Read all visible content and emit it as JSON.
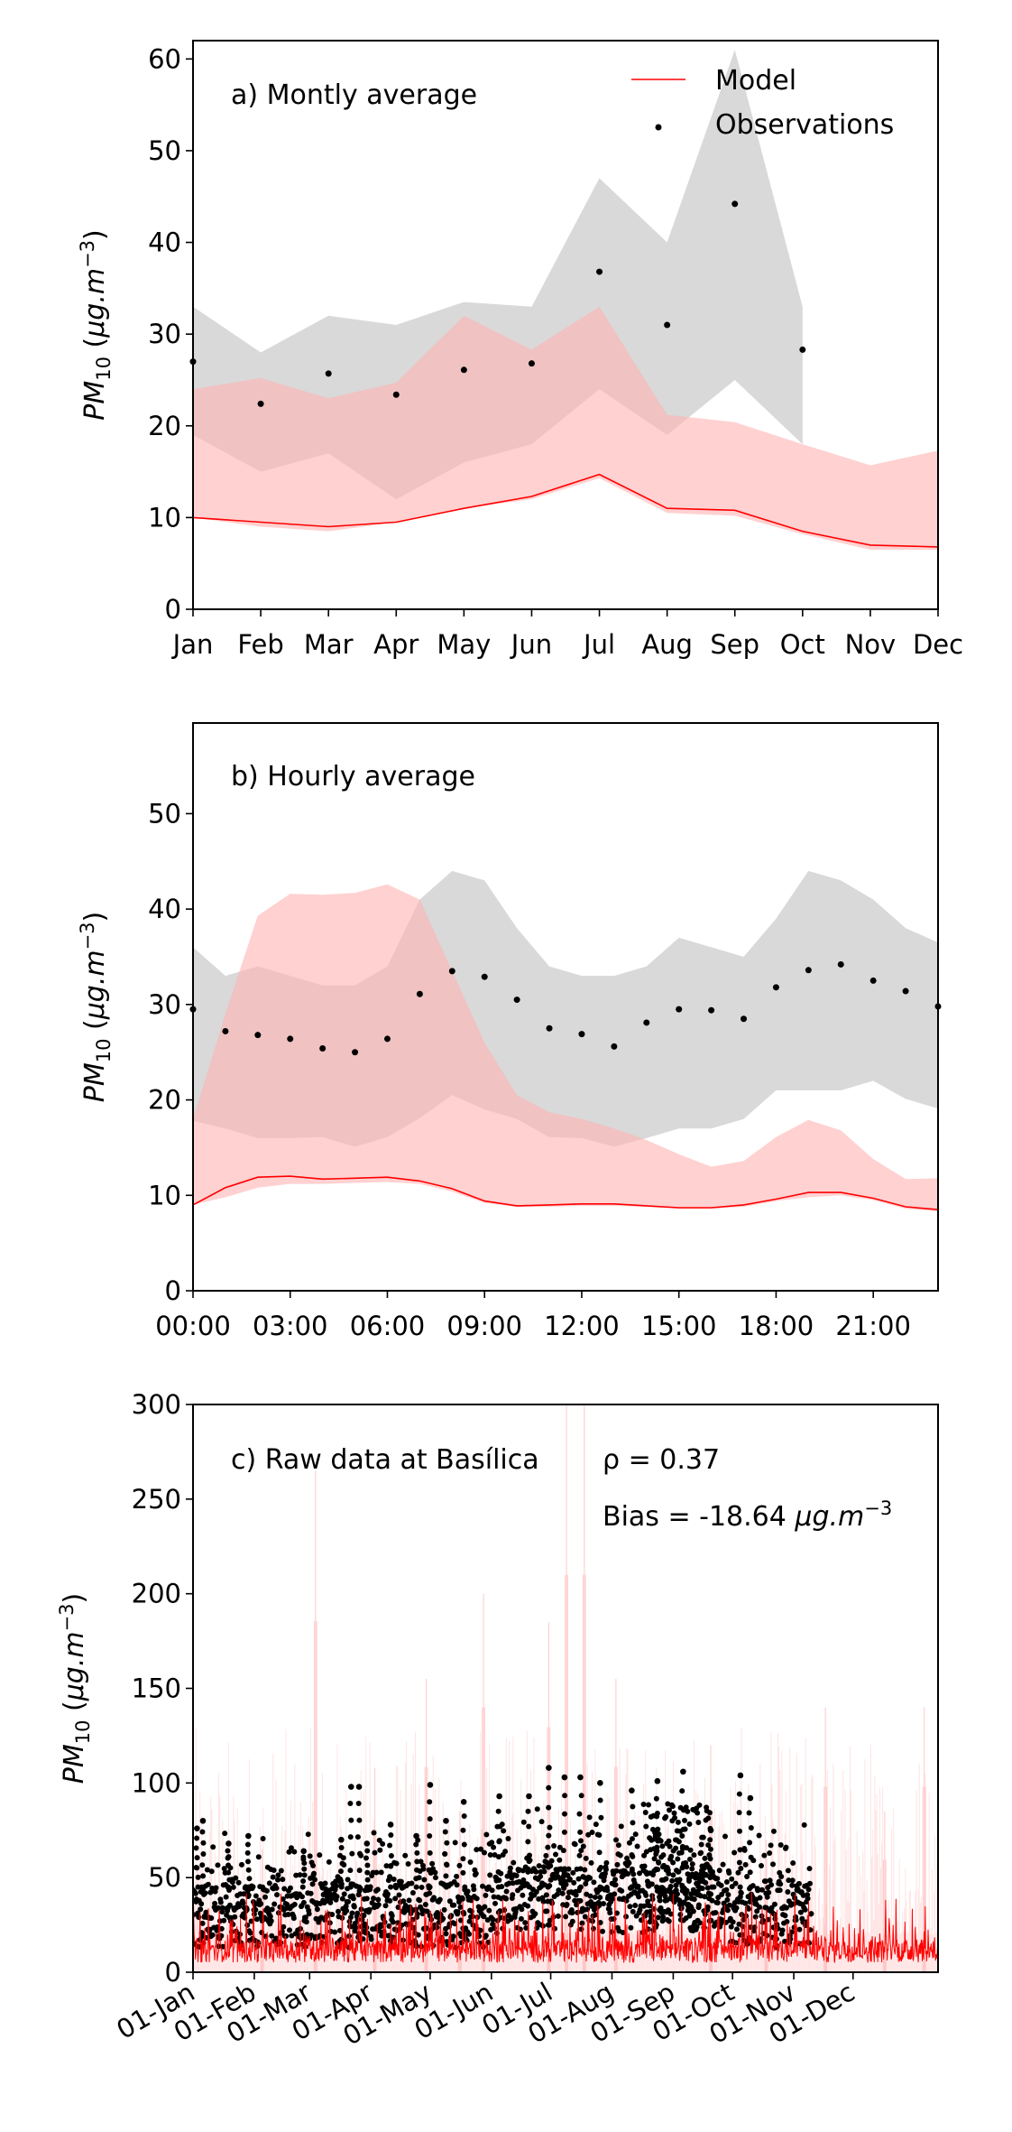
{
  "chart_data": [
    {
      "type": "line",
      "panel_label": "a) Montly average",
      "ylabel": "PM10 (μg.m−3)",
      "ylim": [
        0,
        62
      ],
      "yticks": [
        0,
        10,
        20,
        30,
        40,
        50,
        60
      ],
      "categories": [
        "Jan",
        "Feb",
        "Mar",
        "Apr",
        "May",
        "Jun",
        "Jul",
        "Aug",
        "Sep",
        "Oct",
        "Nov",
        "Dec"
      ],
      "legend": {
        "placement": "top-right",
        "model_label": "Model",
        "obs_label": "Observations"
      },
      "model_color": "#ff0000",
      "model_band_color": "#ffb3b3",
      "obs_band_color": "#d9d9d9",
      "series": [
        {
          "name": "Model",
          "values": [
            10.0,
            9.5,
            9.0,
            9.5,
            11.0,
            12.3,
            14.7,
            11.0,
            10.8,
            8.5,
            7.0,
            6.8
          ]
        },
        {
          "name": "Observations",
          "values": [
            27.0,
            22.4,
            25.7,
            23.4,
            26.1,
            26.8,
            36.8,
            31.0,
            44.2,
            28.3,
            null,
            null
          ]
        }
      ],
      "model_band_lower": [
        10.0,
        9.0,
        8.5,
        9.5,
        11.0,
        12.0,
        14.3,
        10.5,
        10.2,
        8.2,
        6.5,
        6.5
      ],
      "model_band_upper": [
        24.0,
        25.2,
        23.0,
        24.7,
        32.0,
        28.3,
        33.0,
        21.2,
        20.4,
        18.0,
        15.7,
        17.3
      ],
      "obs_band_lower": [
        19.0,
        15.0,
        17.0,
        12.0,
        16.0,
        18.0,
        24.0,
        19.0,
        25.0,
        18.0,
        null,
        null
      ],
      "obs_band_upper": [
        33.0,
        28.0,
        32.0,
        31.0,
        33.5,
        33.0,
        47.0,
        40.0,
        61.0,
        33.0,
        null,
        null
      ]
    },
    {
      "type": "line",
      "panel_label": "b) Hourly average",
      "ylabel": "PM10 (μg.m−3)",
      "ylim": [
        0,
        59.5
      ],
      "yticks": [
        0,
        10,
        20,
        30,
        40,
        50
      ],
      "x": [
        0,
        1,
        2,
        3,
        4,
        5,
        6,
        7,
        8,
        9,
        10,
        11,
        12,
        13,
        14,
        15,
        16,
        17,
        18,
        19,
        20,
        21,
        22,
        23
      ],
      "xtick_labels": [
        "00:00",
        "03:00",
        "06:00",
        "09:00",
        "12:00",
        "15:00",
        "18:00",
        "21:00"
      ],
      "model_color": "#ff0000",
      "model_band_color": "#ffb3b3",
      "obs_band_color": "#d9d9d9",
      "series": [
        {
          "name": "Model",
          "values": [
            9.0,
            10.8,
            11.9,
            12.0,
            11.7,
            11.8,
            11.9,
            11.5,
            10.7,
            9.4,
            8.9,
            9.0,
            9.1,
            9.1,
            8.9,
            8.7,
            8.7,
            9.0,
            9.6,
            10.3,
            10.3,
            9.7,
            8.8,
            8.5
          ]
        },
        {
          "name": "Observations",
          "values": [
            29.5,
            27.2,
            26.8,
            26.4,
            25.4,
            25.0,
            26.4,
            31.1,
            33.5,
            32.9,
            30.5,
            27.5,
            26.9,
            25.6,
            28.1,
            29.5,
            29.4,
            28.5,
            31.8,
            33.6,
            34.2,
            32.5,
            31.4,
            29.8
          ]
        }
      ],
      "model_band_lower": [
        9.0,
        9.8,
        10.8,
        11.2,
        11.2,
        11.3,
        11.4,
        11.2,
        10.4,
        9.2,
        8.8,
        8.8,
        8.9,
        8.9,
        8.8,
        8.6,
        8.6,
        8.8,
        9.4,
        9.8,
        10.0,
        9.5,
        8.6,
        8.3
      ],
      "model_band_upper": [
        18.0,
        29.0,
        39.3,
        41.6,
        41.5,
        41.7,
        42.6,
        41.0,
        33.5,
        26.0,
        20.5,
        18.7,
        18.0,
        17.0,
        15.8,
        14.3,
        13.0,
        13.6,
        16.1,
        17.9,
        16.8,
        13.8,
        11.7,
        11.8
      ],
      "obs_band_lower": [
        17.8,
        17.0,
        16.0,
        16.0,
        16.1,
        15.1,
        16.1,
        18.1,
        20.5,
        19.0,
        18.0,
        16.1,
        16.0,
        15.1,
        16.0,
        17.0,
        17.0,
        18.0,
        21.0,
        21.0,
        21.0,
        22.0,
        20.1,
        19.1
      ],
      "obs_band_upper": [
        36.0,
        33.0,
        34.0,
        33.0,
        32.0,
        32.0,
        34.0,
        41.0,
        44.0,
        43.0,
        38.0,
        34.0,
        33.0,
        33.0,
        34.0,
        37.0,
        36.0,
        35.0,
        39.0,
        44.0,
        43.0,
        41.0,
        38.0,
        36.5
      ]
    },
    {
      "type": "scatter",
      "panel_label": "c) Raw data at Basílica",
      "rho_text": "ρ = 0.37",
      "bias_text": "Bias = -18.64",
      "bias_unit": "μg.m−3",
      "ylabel": "PM10 (μg.m−3)",
      "ylim": [
        0,
        300
      ],
      "yticks": [
        0,
        50,
        100,
        150,
        200,
        250,
        300
      ],
      "xtick_labels": [
        "01-Jan",
        "01-Feb",
        "01-Mar",
        "01-Apr",
        "01-May",
        "01-Jun",
        "01-Jul",
        "01-Aug",
        "01-Sep",
        "01-Oct",
        "01-Nov",
        "01-Dec"
      ],
      "xtick_days": [
        0,
        31,
        59,
        90,
        120,
        151,
        181,
        212,
        243,
        273,
        304,
        334
      ],
      "xlim_days": [
        0,
        377
      ],
      "obs_end_day": 313,
      "obs_baseline_typical": 30,
      "obs_peaks": [
        {
          "day": 2,
          "value": 76
        },
        {
          "day": 5,
          "value": 80
        },
        {
          "day": 18,
          "value": 68
        },
        {
          "day": 28,
          "value": 72
        },
        {
          "day": 56,
          "value": 64
        },
        {
          "day": 75,
          "value": 70
        },
        {
          "day": 80,
          "value": 98
        },
        {
          "day": 84,
          "value": 98
        },
        {
          "day": 88,
          "value": 68
        },
        {
          "day": 100,
          "value": 78
        },
        {
          "day": 113,
          "value": 72
        },
        {
          "day": 120,
          "value": 99
        },
        {
          "day": 128,
          "value": 80
        },
        {
          "day": 137,
          "value": 90
        },
        {
          "day": 155,
          "value": 93
        },
        {
          "day": 170,
          "value": 93
        },
        {
          "day": 180,
          "value": 108
        },
        {
          "day": 188,
          "value": 103
        },
        {
          "day": 196,
          "value": 103
        },
        {
          "day": 206,
          "value": 100
        },
        {
          "day": 222,
          "value": 96
        },
        {
          "day": 235,
          "value": 101
        },
        {
          "day": 248,
          "value": 106
        },
        {
          "day": 262,
          "value": 75
        },
        {
          "day": 277,
          "value": 104
        },
        {
          "day": 282,
          "value": 92
        }
      ],
      "model_peaks": [
        {
          "day": 35,
          "value": 65
        },
        {
          "day": 62,
          "value": 265
        },
        {
          "day": 92,
          "value": 108
        },
        {
          "day": 118,
          "value": 155
        },
        {
          "day": 135,
          "value": 85
        },
        {
          "day": 147,
          "value": 200
        },
        {
          "day": 180,
          "value": 185
        },
        {
          "day": 189,
          "value": 300
        },
        {
          "day": 198,
          "value": 300
        },
        {
          "day": 214,
          "value": 155
        },
        {
          "day": 262,
          "value": 120
        },
        {
          "day": 290,
          "value": 70
        },
        {
          "day": 320,
          "value": 140
        },
        {
          "day": 350,
          "value": 85
        },
        {
          "day": 370,
          "value": 140
        }
      ]
    }
  ]
}
